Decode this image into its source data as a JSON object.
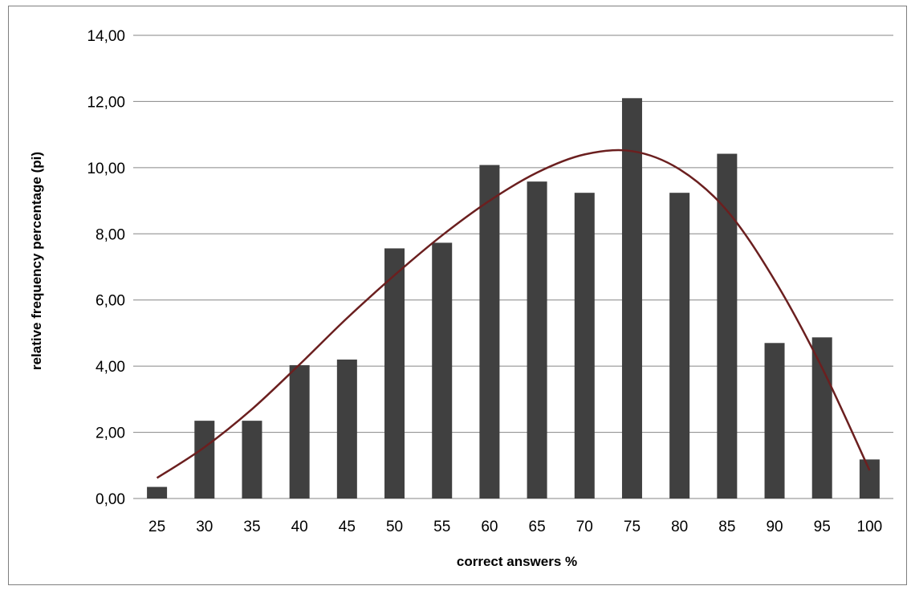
{
  "chart_data": {
    "type": "bar",
    "title": "",
    "xlabel": "correct answers %",
    "ylabel": "relative frequency percentage (pi)",
    "ylim": [
      0,
      14
    ],
    "y_ticks": [
      "0,00",
      "2,00",
      "4,00",
      "6,00",
      "8,00",
      "10,00",
      "12,00",
      "14,00"
    ],
    "grid": "horizontal",
    "legend": "none",
    "categories": [
      "25",
      "30",
      "35",
      "40",
      "45",
      "50",
      "55",
      "60",
      "65",
      "70",
      "75",
      "80",
      "85",
      "90",
      "95",
      "100"
    ],
    "values": [
      0.35,
      2.35,
      2.35,
      4.03,
      4.2,
      7.56,
      7.73,
      10.08,
      9.58,
      9.24,
      12.1,
      9.24,
      10.42,
      4.7,
      4.87,
      1.18
    ],
    "trendline": {
      "type": "polynomial",
      "x": [
        25,
        30,
        35,
        40,
        45,
        50,
        55,
        60,
        65,
        70,
        75,
        80,
        85,
        90,
        95,
        100
      ],
      "y": [
        0.62,
        1.55,
        2.7,
        4.05,
        5.45,
        6.75,
        7.95,
        9.0,
        9.85,
        10.4,
        10.5,
        9.95,
        8.7,
        6.6,
        3.95,
        0.85
      ]
    },
    "colors": {
      "bar": "#404040",
      "trendline": "#6b1f1f",
      "grid": "#868686"
    }
  }
}
